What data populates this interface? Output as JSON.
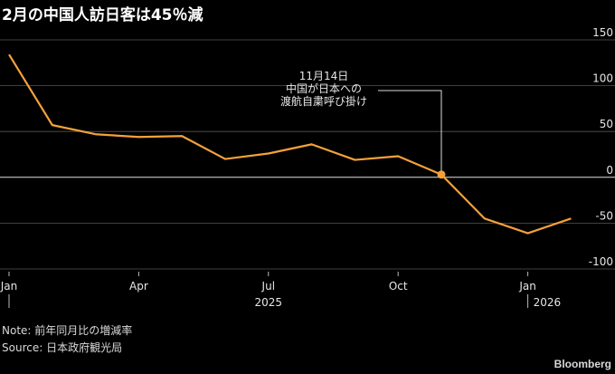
{
  "title": "2月の中国人訪日客は45％減",
  "chart_data": {
    "type": "line",
    "series": [
      {
        "x": [
          "2025-01",
          "2025-02",
          "2025-03",
          "2025-04",
          "2025-05",
          "2025-06",
          "2025-07",
          "2025-08",
          "2025-09",
          "2025-10",
          "2025-11",
          "2025-12",
          "2026-01",
          "2026-02"
        ],
        "values": [
          134,
          57,
          47,
          44,
          45,
          20,
          26,
          36,
          19,
          23,
          3,
          -45,
          -61,
          -45
        ]
      }
    ],
    "ylim": [
      -100,
      150
    ],
    "yticks": [
      150,
      100,
      50,
      0,
      -50,
      -100
    ],
    "ytick_labels": [
      "150",
      "100",
      "50",
      "0",
      "-50",
      "-100"
    ],
    "xticks": [
      {
        "month": "2025-01",
        "label": "Jan"
      },
      {
        "month": "2025-04",
        "label": "Apr"
      },
      {
        "month": "2025-07",
        "label": "Jul"
      },
      {
        "month": "2025-10",
        "label": "Oct"
      },
      {
        "month": "2026-01",
        "label": "Jan"
      }
    ],
    "year_labels": [
      "2025",
      "2026"
    ],
    "annotation": {
      "month": "2025-11",
      "lines": [
        "11月14日",
        "中国が日本への",
        "渡航自粛呼び掛け"
      ]
    },
    "line_color": "#f5a13b",
    "grid": true
  },
  "footer": {
    "note": "Note: 前年同月比の増減率",
    "source": "Source: 日本政府観光局",
    "brand": "Bloomberg"
  }
}
